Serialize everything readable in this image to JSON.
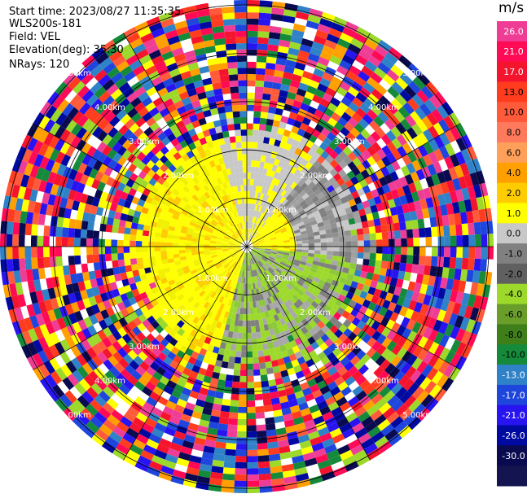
{
  "header": {
    "start_time": "Start time: 2023/08/27 11:35:35",
    "instrument": "WLS200s-181",
    "field": "Field: VEL",
    "elevation": "Elevation(deg): 35.30",
    "nrays": "NRays: 120"
  },
  "colorbar": {
    "unit": "m/s",
    "ticks": [
      "26.0",
      "21.0",
      "17.0",
      "13.0",
      "10.0",
      "8.0",
      "6.0",
      "4.0",
      "2.0",
      "1.0",
      "0.0",
      "-1.0",
      "-2.0",
      "-4.0",
      "-6.0",
      "-8.0",
      "-10.0",
      "-13.0",
      "-17.0",
      "-21.0",
      "-26.0",
      "-30.0"
    ],
    "colors": [
      "#ef3d96",
      "#ff0a55",
      "#f5142d",
      "#ff3c1e",
      "#ff5a3a",
      "#ff7a5c",
      "#ffa05a",
      "#ff9f00",
      "#ffcc00",
      "#ffff00",
      "#c8c8c8",
      "#808080",
      "#606060",
      "#9cd92b",
      "#6a9e2a",
      "#3f7f1a",
      "#158a3a",
      "#2f82c8",
      "#1e46dc",
      "#2814f0",
      "#000aa0",
      "#0a0a50",
      "#141450"
    ]
  },
  "chart_data": {
    "type": "heatmap",
    "title": "",
    "field": "VEL",
    "units": "m/s",
    "nrays": 120,
    "range_ring_labels": [
      "1.00km",
      "2.00km",
      "3.00km",
      "4.00km",
      "5.00km"
    ],
    "range_rings_km": [
      1,
      2,
      3,
      4,
      5
    ],
    "max_range_km": 5.1,
    "color_scale_bounds": [
      -30,
      -26,
      -21,
      -17,
      -13,
      -10,
      -8,
      -6,
      -4,
      -2,
      -1,
      0,
      1,
      2,
      4,
      6,
      8,
      10,
      13,
      17,
      21,
      26,
      30
    ],
    "notes_visible_pattern": "near-range positive (yellow) to the west/north-west, near-range negative (olive/grey) to the south-east; noisy speckle beyond about 2.5 km"
  }
}
